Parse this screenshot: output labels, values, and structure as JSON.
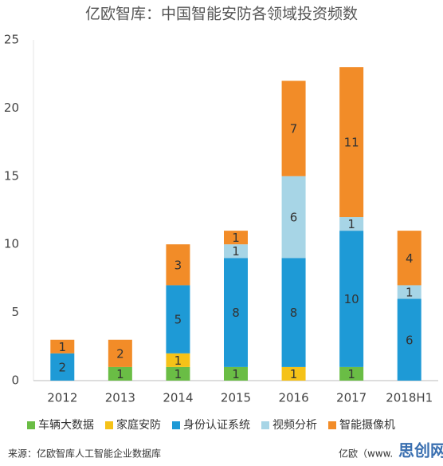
{
  "chart_data": {
    "type": "stacked-bar",
    "title": "亿欧智库：中国智能安防各领域投资频数",
    "categories": [
      "2012",
      "2013",
      "2014",
      "2015",
      "2016",
      "2017",
      "2018H1"
    ],
    "series": [
      {
        "name": "车辆大数据",
        "color": "#6abd45",
        "values": [
          null,
          1,
          1,
          1,
          null,
          1,
          null
        ]
      },
      {
        "name": "家庭安防",
        "color": "#f5c218",
        "values": [
          null,
          null,
          1,
          null,
          1,
          null,
          null
        ]
      },
      {
        "name": "身份认证系统",
        "color": "#1e9ad6",
        "values": [
          2,
          null,
          5,
          8,
          8,
          10,
          6
        ]
      },
      {
        "name": "视频分析",
        "color": "#a7d5e6",
        "values": [
          null,
          null,
          null,
          1,
          6,
          1,
          1
        ]
      },
      {
        "name": "智能摄像机",
        "color": "#f28c28",
        "values": [
          1,
          2,
          3,
          1,
          7,
          11,
          4
        ]
      }
    ],
    "ylim": [
      0,
      25
    ],
    "yticks": [
      0,
      5,
      10,
      15,
      20,
      25
    ],
    "grid": false,
    "legend": "bottom"
  },
  "footer": {
    "source": "来源：亿欧智库人工智能企业数据库",
    "credit": "亿欧（www.",
    "watermark": "思创网"
  }
}
